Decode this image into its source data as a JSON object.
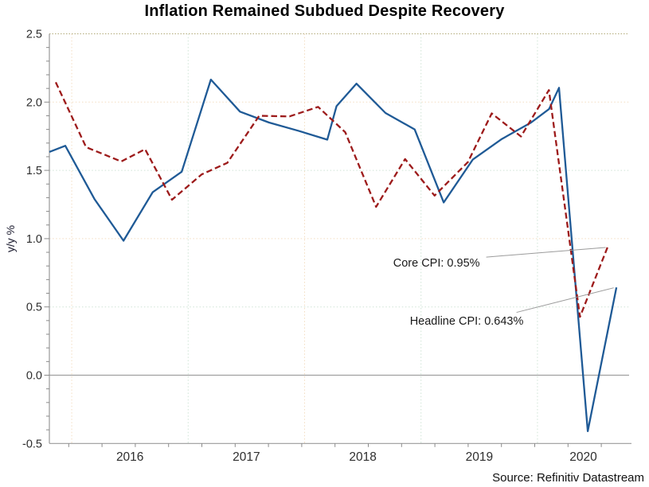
{
  "title": "Inflation Remained Subdued Despite Recovery",
  "source_note": "Source: Refinitiv Datastream",
  "chart_data": {
    "type": "line",
    "title": "Inflation Remained Subdued Despite Recovery",
    "ylabel": "y/y %",
    "xlabel": "",
    "ylim": [
      -0.5,
      2.5
    ],
    "ytick_step": 0.5,
    "ytick_labels": [
      "2.5",
      "2.0",
      "1.5",
      "1.0",
      "0.5",
      "0.0",
      "-0.5"
    ],
    "xlim": [
      2015.808,
      2020.787
    ],
    "xtick_labels": [
      "2016",
      "2017",
      "2018",
      "2019",
      "2020"
    ],
    "grid": true,
    "gridline_style": "dotted",
    "zero_line": true,
    "legend_position": "none",
    "year_gridlines": [
      {
        "t": 2016,
        "tone": "warm"
      },
      {
        "t": 2017,
        "tone": "cool"
      },
      {
        "t": 2018,
        "tone": "warm"
      },
      {
        "t": 2019,
        "tone": "cool"
      },
      {
        "t": 2020,
        "tone": "cool"
      }
    ],
    "hgridlines": [
      {
        "v": 0.5,
        "tone": "cool"
      },
      {
        "v": 1.0,
        "tone": "warm"
      },
      {
        "v": 1.5,
        "tone": "cool"
      },
      {
        "v": 2.0,
        "tone": "warm"
      }
    ],
    "colors": {
      "headline": "#1f5a96",
      "core": "#9d1b1b",
      "grid_warm": "#f3ddc1",
      "grid_cool": "#cfe4d5",
      "top_border": "#b2aa78",
      "axis": "#9a9a9a",
      "tick": "#8a8a8a",
      "zero_line": "#a0a0a0",
      "leader": "#9b9b9b",
      "tick_label": "#2e2e2e"
    },
    "series": [
      {
        "name": "Headline CPI",
        "style": "solid",
        "color_key": "headline",
        "points": [
          [
            2015.808,
            1.635
          ],
          [
            2015.945,
            1.68
          ],
          [
            2016.195,
            1.29
          ],
          [
            2016.445,
            0.985
          ],
          [
            2016.695,
            1.34
          ],
          [
            2016.945,
            1.49
          ],
          [
            2017.195,
            2.165
          ],
          [
            2017.445,
            1.93
          ],
          [
            2017.695,
            1.85
          ],
          [
            2017.945,
            1.79
          ],
          [
            2018.195,
            1.725
          ],
          [
            2018.274,
            1.97
          ],
          [
            2018.445,
            2.135
          ],
          [
            2018.695,
            1.92
          ],
          [
            2018.945,
            1.8
          ],
          [
            2019.195,
            1.265
          ],
          [
            2019.445,
            1.58
          ],
          [
            2019.695,
            1.73
          ],
          [
            2019.945,
            1.85
          ],
          [
            2020.1,
            1.95
          ],
          [
            2020.185,
            2.105
          ],
          [
            2020.432,
            -0.41
          ],
          [
            2020.678,
            0.643
          ]
        ]
      },
      {
        "name": "Core CPI",
        "style": "dashed",
        "color_key": "core",
        "points": [
          [
            2015.863,
            2.145
          ],
          [
            2016.123,
            1.67
          ],
          [
            2016.425,
            1.565
          ],
          [
            2016.63,
            1.655
          ],
          [
            2016.861,
            1.285
          ],
          [
            2017.116,
            1.47
          ],
          [
            2017.336,
            1.555
          ],
          [
            2017.61,
            1.9
          ],
          [
            2017.87,
            1.895
          ],
          [
            2018.116,
            1.965
          ],
          [
            2018.349,
            1.78
          ],
          [
            2018.614,
            1.233
          ],
          [
            2018.863,
            1.583
          ],
          [
            2019.116,
            1.315
          ],
          [
            2019.402,
            1.56
          ],
          [
            2019.607,
            1.917
          ],
          [
            2019.858,
            1.748
          ],
          [
            2020.098,
            2.088
          ],
          [
            2020.365,
            0.427
          ],
          [
            2020.608,
            0.95
          ]
        ]
      }
    ],
    "annotations": [
      {
        "text": "Core CPI: 0.95%",
        "anchor_t": 2019.505,
        "anchor_v": 0.825,
        "align": "right",
        "leader": [
          [
            2019.56,
            0.865
          ],
          [
            2020.585,
            0.935
          ]
        ]
      },
      {
        "text": "Headline CPI: 0.643%",
        "anchor_t": 2019.88,
        "anchor_v": 0.4,
        "align": "right",
        "leader": [
          [
            2019.82,
            0.46
          ],
          [
            2020.655,
            0.64
          ]
        ]
      }
    ]
  }
}
